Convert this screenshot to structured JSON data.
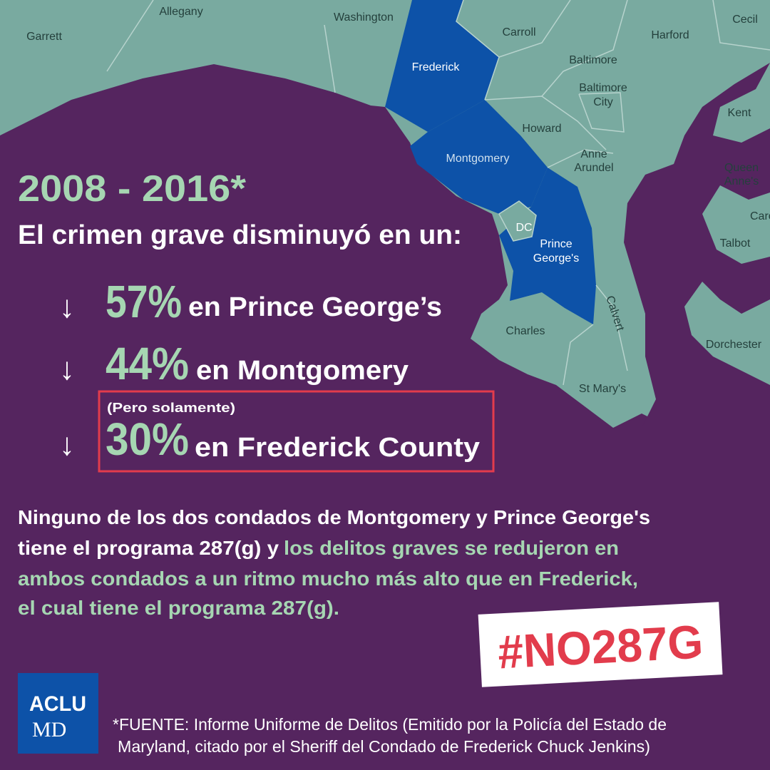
{
  "map": {
    "labels": [
      {
        "lines": [
          "Garrett"
        ]
      },
      {
        "lines": [
          "Allegany"
        ]
      },
      {
        "lines": [
          "Washington"
        ]
      },
      {
        "lines": [
          "Carroll"
        ]
      },
      {
        "lines": [
          "Harford"
        ]
      },
      {
        "lines": [
          "Cecil"
        ]
      },
      {
        "lines": [
          "Frederick"
        ]
      },
      {
        "lines": [
          "Baltimore"
        ]
      },
      {
        "lines": [
          "Baltimore",
          "City"
        ]
      },
      {
        "lines": [
          "Kent"
        ]
      },
      {
        "lines": [
          "Howard"
        ]
      },
      {
        "lines": [
          "Anne",
          "Arundel"
        ]
      },
      {
        "lines": [
          "Montgomery"
        ]
      },
      {
        "lines": [
          "Queen",
          "Anne's"
        ]
      },
      {
        "lines": [
          "DC"
        ]
      },
      {
        "lines": [
          "Prince",
          "George's"
        ]
      },
      {
        "lines": [
          "Caro"
        ]
      },
      {
        "lines": [
          "Talbot"
        ]
      },
      {
        "lines": [
          "Calvert"
        ]
      },
      {
        "lines": [
          "Charles"
        ]
      },
      {
        "lines": [
          "Dorchester"
        ]
      },
      {
        "lines": [
          "St Mary's"
        ]
      }
    ]
  },
  "headline": {
    "period": "2008 - 2016*",
    "lead": "El crimen grave disminuyó en un:"
  },
  "stats": [
    {
      "arrow": "↓",
      "percent": "57%",
      "place": "en Prince George’s"
    },
    {
      "arrow": "↓",
      "percent": "44%",
      "place": "en Montgomery"
    },
    {
      "arrow": "↓",
      "note": "(Pero solamente)",
      "percent": "30%",
      "place": "en Frederick County"
    }
  ],
  "paragraph": {
    "lines": [
      [
        "Ninguno de los dos condados de Montgomery y Prince George's"
      ],
      [
        "tiene el programa 287(g) y ",
        "los delitos graves se redujeron en"
      ],
      [
        "ambos condados a un ritmo mucho más alto que en Frederick,"
      ],
      [
        "el cual tiene el programa 287(g)."
      ]
    ]
  },
  "hashtag": "#NO287G",
  "logo": {
    "top": "ACLU",
    "bottom": "MD"
  },
  "source": [
    "*FUENTE: Informe Uniforme de Delitos (Emitido por la Policía del Estado de",
    "Maryland, citado por el Sheriff del Condado de Frederick Chuck Jenkins)"
  ]
}
